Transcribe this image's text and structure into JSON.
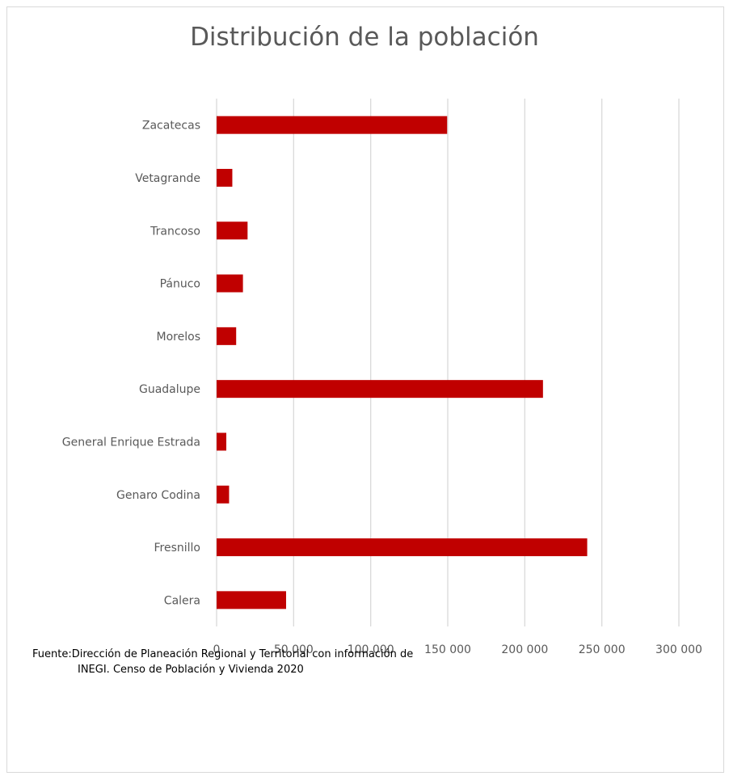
{
  "chart_data": {
    "type": "bar",
    "orientation": "horizontal",
    "title": "Distribución de la población",
    "xlabel": "",
    "ylabel": "",
    "categories": [
      "Zacatecas",
      "Vetagrande",
      "Trancoso",
      "Pánuco",
      "Morelos",
      "Guadalupe",
      "General Enrique Estrada",
      "Genaro Codina",
      "Fresnillo",
      "Calera"
    ],
    "values": [
      149600,
      10200,
      20100,
      17100,
      12700,
      211800,
      6300,
      8100,
      240500,
      45100
    ],
    "xlim": [
      0,
      300000
    ],
    "x_ticks": [
      0,
      50000,
      100000,
      150000,
      200000,
      250000,
      300000
    ],
    "x_tick_labels": [
      "0",
      "50 000",
      "100 000",
      "150 000",
      "200 000",
      "250 000",
      "300 000"
    ],
    "grid": "vertical",
    "bar_color": "#c00000",
    "legend": "none"
  },
  "source": {
    "line1": "Fuente:Dirección de Planeación Regional y Territorial con información de",
    "line2": "INEGI. Censo de Población y Vivienda 2020"
  },
  "colors": {
    "bar": "#c00000",
    "grid": "#d9d9d9",
    "text": "#595959"
  }
}
